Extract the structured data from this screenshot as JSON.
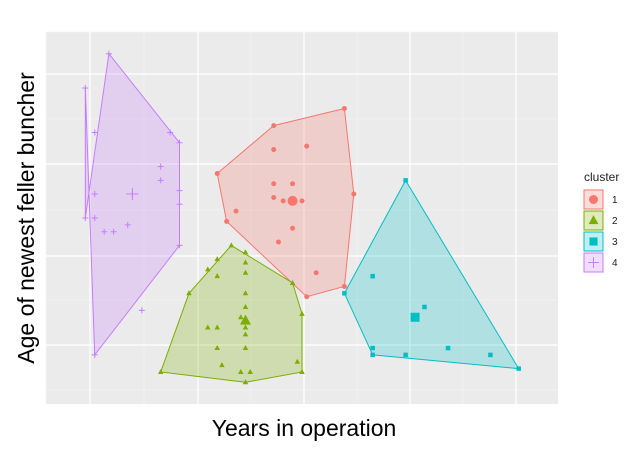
{
  "chart_data": {
    "type": "scatter",
    "xlabel": "Years in operation",
    "ylabel": "Age of newest feller buncher",
    "xlim": [
      0,
      100
    ],
    "ylim": [
      0,
      100
    ],
    "grid": true,
    "hull_polygons": true,
    "axis_ticks_labeled": false,
    "legend": {
      "title": "cluster",
      "position": "right"
    },
    "series": [
      {
        "name": "1",
        "color": "#F8766D",
        "shape": "circle",
        "centroid": [
          48,
          55
        ],
        "hull": [
          [
            32,
            63
          ],
          [
            44,
            77
          ],
          [
            59,
            82
          ],
          [
            61,
            57
          ],
          [
            59,
            30
          ],
          [
            51,
            27
          ],
          [
            34,
            49
          ]
        ],
        "points": [
          [
            32,
            63
          ],
          [
            44,
            77
          ],
          [
            59,
            82
          ],
          [
            61,
            57
          ],
          [
            59,
            30
          ],
          [
            51,
            27
          ],
          [
            34,
            49
          ],
          [
            36,
            52
          ],
          [
            44,
            70
          ],
          [
            51,
            71
          ],
          [
            48,
            60
          ],
          [
            46,
            55
          ],
          [
            44,
            56
          ],
          [
            44,
            60
          ],
          [
            50,
            55
          ],
          [
            45,
            43
          ],
          [
            48,
            47
          ],
          [
            53,
            34
          ]
        ]
      },
      {
        "name": "2",
        "color": "#7CAE00",
        "shape": "triangle",
        "centroid": [
          38,
          20
        ],
        "hull": [
          [
            35,
            42
          ],
          [
            48,
            31
          ],
          [
            50,
            22
          ],
          [
            50,
            5
          ],
          [
            38,
            2
          ],
          [
            20,
            5
          ],
          [
            26,
            28
          ]
        ],
        "points": [
          [
            35,
            42
          ],
          [
            48,
            31
          ],
          [
            50,
            22
          ],
          [
            50,
            5
          ],
          [
            38,
            2
          ],
          [
            20,
            5
          ],
          [
            26,
            28
          ],
          [
            32,
            38
          ],
          [
            30,
            35
          ],
          [
            38,
            40
          ],
          [
            38,
            37
          ],
          [
            38,
            34
          ],
          [
            38,
            28
          ],
          [
            32,
            33
          ],
          [
            38,
            24
          ],
          [
            32,
            18
          ],
          [
            38,
            18
          ],
          [
            37,
            21
          ],
          [
            38,
            12
          ],
          [
            32,
            12
          ],
          [
            33,
            7
          ],
          [
            37,
            5
          ],
          [
            39,
            5
          ],
          [
            49,
            8
          ],
          [
            30,
            18
          ],
          [
            38,
            16
          ]
        ]
      },
      {
        "name": "3",
        "color": "#00BFC4",
        "shape": "square",
        "centroid": [
          74,
          21
        ],
        "hull": [
          [
            72,
            61
          ],
          [
            96,
            6
          ],
          [
            65,
            10
          ],
          [
            59,
            28
          ]
        ],
        "points": [
          [
            72,
            61
          ],
          [
            96,
            6
          ],
          [
            65,
            10
          ],
          [
            59,
            28
          ],
          [
            65,
            33
          ],
          [
            65,
            12
          ],
          [
            72,
            10
          ],
          [
            76,
            24
          ],
          [
            81,
            12
          ],
          [
            90,
            10
          ]
        ]
      },
      {
        "name": "4",
        "color": "#C77CFF",
        "shape": "cross",
        "centroid": [
          14,
          57
        ],
        "hull": [
          [
            9,
            98
          ],
          [
            24,
            72
          ],
          [
            24,
            42
          ],
          [
            6,
            10
          ],
          [
            4,
            88
          ],
          [
            4,
            50
          ]
        ],
        "points": [
          [
            9,
            98
          ],
          [
            4,
            88
          ],
          [
            24,
            72
          ],
          [
            24,
            42
          ],
          [
            6,
            10
          ],
          [
            4,
            50
          ],
          [
            6,
            75
          ],
          [
            22,
            75
          ],
          [
            20,
            65
          ],
          [
            20,
            61
          ],
          [
            24,
            58
          ],
          [
            24,
            54
          ],
          [
            6,
            57
          ],
          [
            6,
            50
          ],
          [
            8,
            46
          ],
          [
            10,
            46
          ],
          [
            13,
            48
          ],
          [
            16,
            23
          ],
          [
            14,
            57
          ]
        ]
      }
    ]
  }
}
